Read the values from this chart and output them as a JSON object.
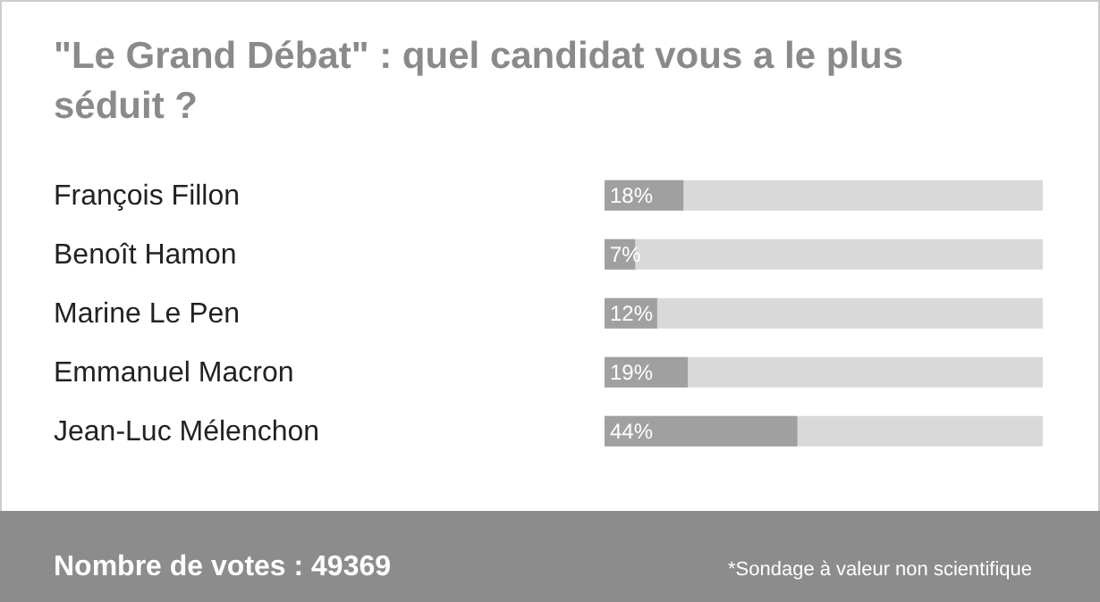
{
  "chart_data": {
    "type": "bar",
    "orientation": "horizontal",
    "title": "\"Le Grand Débat\" : quel candidat vous a le plus séduit ?",
    "categories": [
      "François Fillon",
      "Benoît Hamon",
      "Marine Le Pen",
      "Emmanuel Macron",
      "Jean-Luc Mélenchon"
    ],
    "values": [
      18,
      7,
      12,
      19,
      44
    ],
    "value_labels": [
      "18%",
      "7%",
      "12%",
      "19%",
      "44%"
    ],
    "color": "#a0a0a0",
    "xlim": [
      0,
      100
    ],
    "tick_labels": "y",
    "annotations": [
      "Nombre de votes : 49369",
      "*Sondage à valeur non scientifique"
    ]
  }
}
